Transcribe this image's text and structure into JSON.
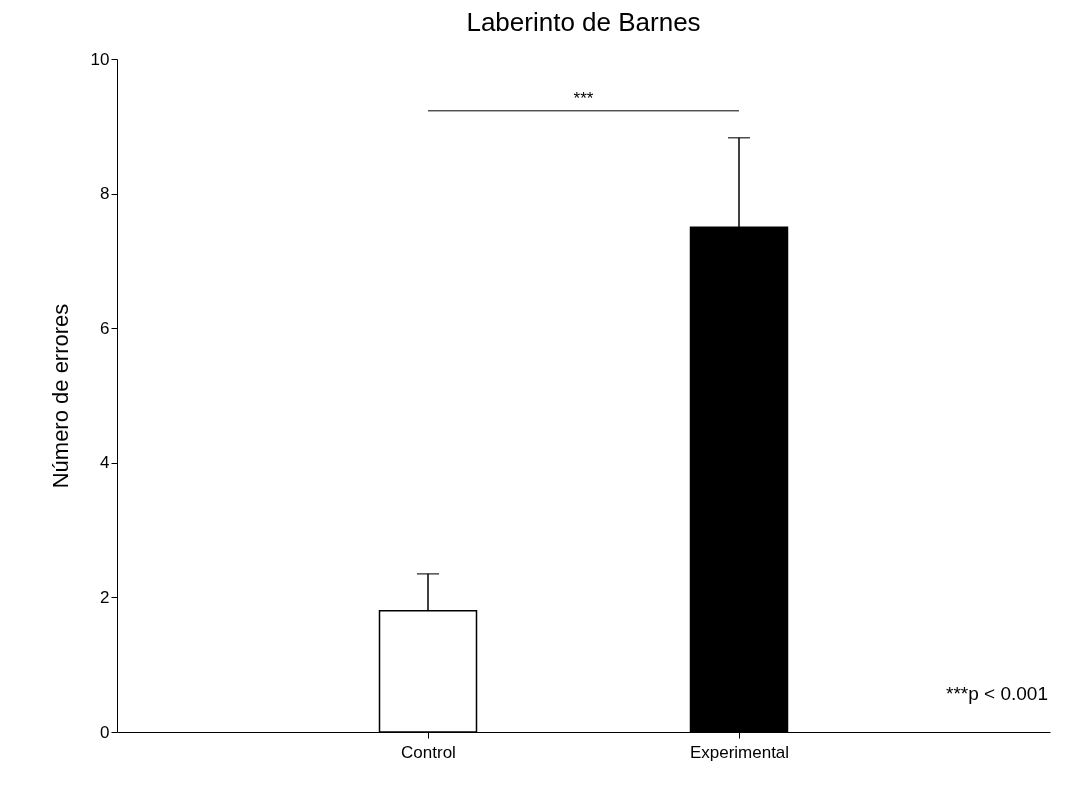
{
  "chart_data": {
    "type": "bar",
    "title": "Laberinto de Barnes",
    "ylabel": "Número de errores",
    "categories": [
      "Control",
      "Experimental"
    ],
    "values": [
      1.8,
      7.5
    ],
    "colors": [
      "#ffffff",
      "#000000"
    ],
    "errors": [
      [
        1.8,
        2.35
      ],
      [
        7.5,
        8.83
      ]
    ],
    "ylim": [
      0,
      10
    ],
    "yticks": [
      0,
      2,
      4,
      6,
      8,
      10
    ],
    "grid": false,
    "annotations": [
      "***",
      "***p < 0.001"
    ]
  }
}
